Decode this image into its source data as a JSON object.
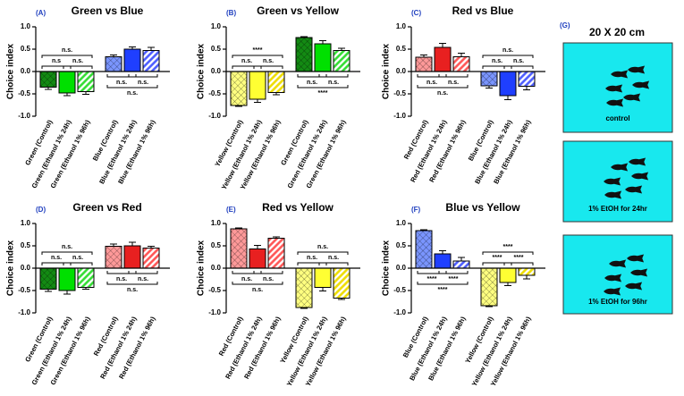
{
  "chart_data": [
    {
      "type": "bar",
      "panel_label": "(A)",
      "title": "Green vs Blue",
      "y_label": "Choice index",
      "categories": [
        "Green (Control)",
        "Green (Ethanol 1% 24h)",
        "Green (Ethanol 1% 96h)",
        "Blue (Control)",
        "Blue (Ethanol 1% 24h)",
        "Blue (Ethanol 1% 96h)"
      ],
      "values": [
        -0.35,
        -0.48,
        -0.45,
        0.33,
        0.5,
        0.47
      ],
      "errors": [
        0.05,
        0.06,
        0.06,
        0.04,
        0.05,
        0.07
      ],
      "colors": [
        "#138a13",
        "#00e000",
        "#33dd33",
        "#7a95ff",
        "#1f3fff",
        "#4c5cff"
      ],
      "patterns": [
        "crosshatch",
        "solid",
        "stripes",
        "crosshatch",
        "solid",
        "stripes"
      ],
      "comparisons": [
        {
          "label": "n.s.",
          "pair": [
            0,
            2
          ]
        },
        {
          "label": "n.s",
          "pair": [
            0,
            1
          ]
        },
        {
          "label": "n.s.",
          "pair": [
            1,
            2
          ]
        },
        {
          "label": "n.s.",
          "pair": [
            3,
            4
          ]
        },
        {
          "label": "n.s.",
          "pair": [
            4,
            5
          ]
        },
        {
          "label": "n.s.",
          "pair": [
            3,
            5
          ]
        }
      ],
      "ylim": [
        -1,
        1
      ],
      "yticks": [
        {
          "value": -1,
          "label": "-1.0"
        },
        -0.5,
        {
          "value": 0,
          "label": "0.0"
        },
        0.5,
        {
          "value": 1,
          "label": "1.0"
        }
      ]
    },
    {
      "type": "bar",
      "panel_label": "(B)",
      "title": "Green vs Yellow",
      "y_label": "Choice index",
      "categories": [
        "Yellow (Control)",
        "Yellow (Ethanol 1% 24h)",
        "Yellow (Ethanol 1% 96h)",
        "Green (Control)",
        "Green (Ethanol 1% 24h)",
        "Green (Ethanol 1% 96h)"
      ],
      "values": [
        -0.76,
        -0.62,
        -0.47,
        0.76,
        0.62,
        0.47
      ],
      "errors": [
        0.02,
        0.07,
        0.05,
        0.02,
        0.07,
        0.05
      ],
      "colors": [
        "#ffff80",
        "#ffff33",
        "#eedd00",
        "#138a13",
        "#00e000",
        "#33dd33"
      ],
      "patterns": [
        "crosshatch",
        "solid",
        "stripes",
        "crosshatch",
        "solid",
        "stripes"
      ],
      "comparisons": [
        {
          "label": "****",
          "pair": [
            0,
            2
          ]
        },
        {
          "label": "n.s.",
          "pair": [
            0,
            1
          ]
        },
        {
          "label": "n.s.",
          "pair": [
            1,
            2
          ]
        },
        {
          "label": "n.s.",
          "pair": [
            3,
            4
          ]
        },
        {
          "label": "n.s.",
          "pair": [
            4,
            5
          ]
        },
        {
          "label": "****",
          "pair": [
            3,
            5
          ]
        }
      ],
      "ylim": [
        -1,
        1
      ],
      "yticks": [
        {
          "value": -1,
          "label": "-1.0"
        },
        -0.5,
        {
          "value": 0,
          "label": "0.0"
        },
        0.5,
        {
          "value": 1,
          "label": "1.0"
        }
      ]
    },
    {
      "type": "bar",
      "panel_label": "(C)",
      "title": "Red vs Blue",
      "y_label": "Choice index",
      "categories": [
        "Red (Control)",
        "Red (Ethanol 1% 24h)",
        "Red (Ethanol 1% 96h)",
        "Blue (Control)",
        "Blue (Ethanol 1% 24h)",
        "Blue (Ethanol 1% 96h)"
      ],
      "values": [
        0.32,
        0.54,
        0.33,
        -0.32,
        -0.54,
        -0.33
      ],
      "errors": [
        0.05,
        0.09,
        0.08,
        0.05,
        0.09,
        0.08
      ],
      "colors": [
        "#ff9999",
        "#e82020",
        "#ff5555",
        "#7a95ff",
        "#1f3fff",
        "#4c5cff"
      ],
      "patterns": [
        "crosshatch",
        "solid",
        "stripes",
        "crosshatch",
        "solid",
        "stripes"
      ],
      "comparisons": [
        {
          "label": "n.s.",
          "pair": [
            0,
            1
          ]
        },
        {
          "label": "n.s.",
          "pair": [
            1,
            2
          ]
        },
        {
          "label": "n.s.",
          "pair": [
            0,
            2
          ]
        },
        {
          "label": "n.s.",
          "pair": [
            3,
            5
          ]
        },
        {
          "label": "n.s.",
          "pair": [
            3,
            4
          ]
        },
        {
          "label": "n.s.",
          "pair": [
            4,
            5
          ]
        }
      ],
      "ylim": [
        -1,
        1
      ],
      "yticks": [
        {
          "value": -1,
          "label": "-1.0"
        },
        -0.5,
        {
          "value": 0,
          "label": "0.0"
        },
        0.5,
        {
          "value": 1,
          "label": "1.0"
        }
      ]
    },
    {
      "type": "bar",
      "panel_label": "(D)",
      "title": "Green vs Red",
      "y_label": "Choice index",
      "categories": [
        "Green (Control)",
        "Green (Ethanol 1% 24h)",
        "Green (Ethanol 1% 96h)",
        "Red (Control)",
        "Red (Ethanol 1% 24h)",
        "Red (Ethanol 1% 96h)"
      ],
      "values": [
        -0.47,
        -0.5,
        -0.43,
        0.49,
        0.5,
        0.45
      ],
      "errors": [
        0.05,
        0.08,
        0.04,
        0.05,
        0.08,
        0.04
      ],
      "colors": [
        "#138a13",
        "#00e000",
        "#33dd33",
        "#ff9999",
        "#e82020",
        "#ff5555"
      ],
      "patterns": [
        "crosshatch",
        "solid",
        "stripes",
        "crosshatch",
        "solid",
        "stripes"
      ],
      "comparisons": [
        {
          "label": "n.s.",
          "pair": [
            0,
            2
          ]
        },
        {
          "label": "n.s.",
          "pair": [
            0,
            1
          ]
        },
        {
          "label": "n.s.",
          "pair": [
            1,
            2
          ]
        },
        {
          "label": "n.s.",
          "pair": [
            3,
            4
          ]
        },
        {
          "label": "n.s.",
          "pair": [
            4,
            5
          ]
        },
        {
          "label": "n.s.",
          "pair": [
            3,
            5
          ]
        }
      ],
      "ylim": [
        -1,
        1
      ],
      "yticks": [
        {
          "value": -1,
          "label": "-1.0"
        },
        -0.5,
        {
          "value": 0,
          "label": "0.0"
        },
        0.5,
        {
          "value": 1,
          "label": "1.0"
        }
      ]
    },
    {
      "type": "bar",
      "panel_label": "(E)",
      "title": "Red vs Yellow",
      "y_label": "Choice index",
      "categories": [
        "Red (Control)",
        "Red (Ethanol 1% 24h)",
        "Red (Ethanol 1% 96h)",
        "Yellow (Control)",
        "Yellow (Ethanol 1% 24h)",
        "Yellow (Ethanol 1% 96h)"
      ],
      "values": [
        0.88,
        0.43,
        0.67,
        -0.88,
        -0.43,
        -0.67
      ],
      "errors": [
        0.02,
        0.08,
        0.03,
        0.02,
        0.08,
        0.03
      ],
      "colors": [
        "#ff9999",
        "#e82020",
        "#ff5555",
        "#ffff80",
        "#ffff33",
        "#eedd00"
      ],
      "patterns": [
        "crosshatch",
        "solid",
        "stripes",
        "crosshatch",
        "solid",
        "stripes"
      ],
      "comparisons": [
        {
          "label": "n.s.",
          "pair": [
            0,
            1
          ]
        },
        {
          "label": "n.s.",
          "pair": [
            1,
            2
          ]
        },
        {
          "label": "n.s.",
          "pair": [
            0,
            2
          ]
        },
        {
          "label": "n.s.",
          "pair": [
            3,
            5
          ]
        },
        {
          "label": "n.s.",
          "pair": [
            3,
            4
          ]
        },
        {
          "label": "n.s.",
          "pair": [
            4,
            5
          ]
        }
      ],
      "ylim": [
        -1,
        1
      ],
      "yticks": [
        {
          "value": -1,
          "label": "-1.0"
        },
        -0.5,
        {
          "value": 0,
          "label": "0.0"
        },
        0.5,
        {
          "value": 1,
          "label": "1.0"
        }
      ]
    },
    {
      "type": "bar",
      "panel_label": "(F)",
      "title": "Blue vs Yellow",
      "y_label": "Choice index",
      "categories": [
        "Blue (Control)",
        "Blue (Ethanol 1% 24h)",
        "Blue (Ethanol 1% 96h)",
        "Yellow (Control)",
        "Yellow (Ethanol 1% 24h)",
        "Yellow (Ethanol 1% 96h)"
      ],
      "values": [
        0.84,
        0.32,
        0.16,
        -0.84,
        -0.32,
        -0.16
      ],
      "errors": [
        0.02,
        0.07,
        0.08,
        0.02,
        0.07,
        0.08
      ],
      "colors": [
        "#7a95ff",
        "#1f3fff",
        "#4c5cff",
        "#ffff80",
        "#ffff33",
        "#eedd00"
      ],
      "patterns": [
        "crosshatch",
        "solid",
        "stripes",
        "crosshatch",
        "solid",
        "stripes"
      ],
      "comparisons": [
        {
          "label": "****",
          "pair": [
            0,
            1
          ]
        },
        {
          "label": "****",
          "pair": [
            1,
            2
          ]
        },
        {
          "label": "****",
          "pair": [
            0,
            2
          ]
        },
        {
          "label": "****",
          "pair": [
            3,
            5
          ]
        },
        {
          "label": "****",
          "pair": [
            3,
            4
          ]
        },
        {
          "label": "****",
          "pair": [
            4,
            5
          ]
        }
      ],
      "ylim": [
        -1,
        1
      ],
      "yticks": [
        {
          "value": -1,
          "label": "-1.0"
        },
        -0.5,
        {
          "value": 0,
          "label": "0.0"
        },
        0.5,
        {
          "value": 1,
          "label": "1.0"
        }
      ]
    }
  ],
  "panel_g": {
    "label": "(G)",
    "title": "20 X 20 cm",
    "captions": [
      "control",
      "1% EtOH for 24hr",
      "1% EtOH for 96hr"
    ]
  }
}
